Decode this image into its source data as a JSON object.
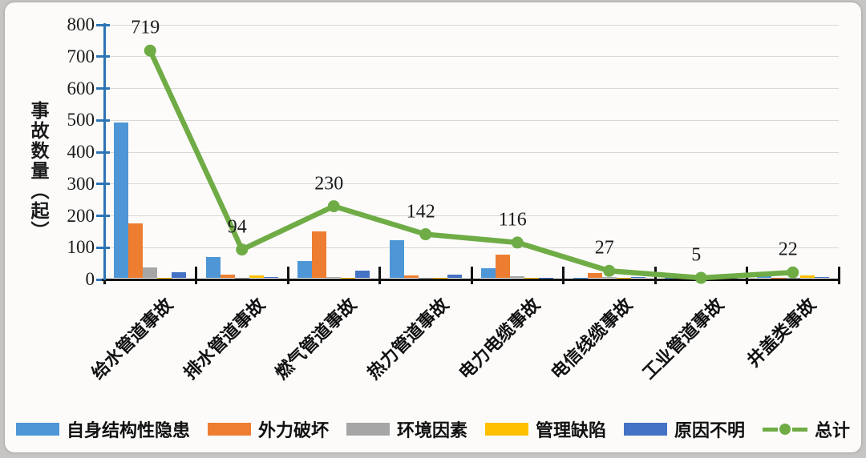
{
  "colors": {
    "y_axis": "#2e74b5",
    "x_axis": "#121212",
    "grid": "#d8d8d8",
    "card_background": "#fcfbfa",
    "page_background": "#c7c5c3"
  },
  "chart_data": {
    "type": "bar",
    "combo": "bar+line",
    "title": "",
    "xlabel": "",
    "ylabel": "事故数量（起）",
    "ylim": [
      0,
      800
    ],
    "yticks": [
      0,
      100,
      200,
      300,
      400,
      500,
      600,
      700,
      800
    ],
    "grid": true,
    "legend_position": "bottom",
    "categories": [
      "给水管道事故",
      "排水管道事故",
      "燃气管道事故",
      "热力管道事故",
      "电力电缆事故",
      "电信线缆事故",
      "工业管道事故",
      "井盖类事故"
    ],
    "series": [
      {
        "name": "自身结构性隐患",
        "type": "bar",
        "color": "#4e96d6",
        "values": [
          490,
          66,
          53,
          120,
          32,
          2,
          1,
          6
        ]
      },
      {
        "name": "外力破坏",
        "type": "bar",
        "color": "#ed7d31",
        "values": [
          172,
          12,
          146,
          8,
          74,
          16,
          1,
          2
        ]
      },
      {
        "name": "环境因素",
        "type": "bar",
        "color": "#a6a6a6",
        "values": [
          35,
          2,
          5,
          2,
          7,
          4,
          1,
          1
        ]
      },
      {
        "name": "管理缺陷",
        "type": "bar",
        "color": "#ffc000",
        "values": [
          2,
          10,
          2,
          1,
          1,
          1,
          1,
          8
        ]
      },
      {
        "name": "原因不明",
        "type": "bar",
        "color": "#4472c4",
        "values": [
          20,
          4,
          24,
          11,
          2,
          4,
          1,
          5
        ]
      },
      {
        "name": "总计",
        "type": "line",
        "color": "#6fac46",
        "values": [
          719,
          94,
          230,
          142,
          116,
          27,
          5,
          22
        ],
        "data_labels": true
      }
    ]
  }
}
